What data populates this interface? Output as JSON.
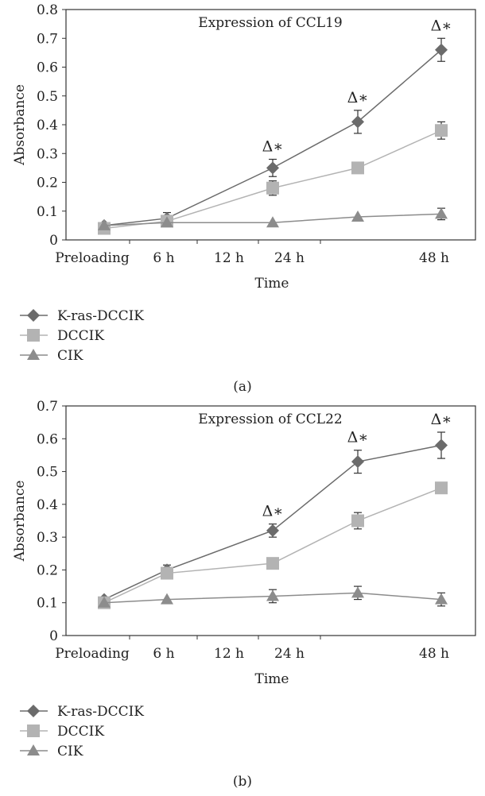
{
  "chart_data": [
    {
      "type": "line",
      "title": "Expression of CCL19",
      "xlabel": "Time",
      "ylabel": "Absorbance",
      "categories": [
        "Preloading",
        "6 h",
        "12 h",
        "24 h",
        "48 h"
      ],
      "ylim": [
        0,
        0.8
      ],
      "yticks": [
        "0",
        "0.1",
        "0.2",
        "0.3",
        "0.4",
        "0.5",
        "0.6",
        "0.7",
        "0.8"
      ],
      "legend_position": "bottom-left",
      "panel_label": "(a)",
      "series": [
        {
          "name": "K-ras-DCCIK",
          "marker": "diamond",
          "color": "#6b6b6b",
          "values": [
            0.05,
            0.075,
            0.25,
            0.41,
            0.66
          ],
          "errors": [
            0.005,
            0.02,
            0.03,
            0.04,
            0.04
          ]
        },
        {
          "name": "DCCIK",
          "marker": "square",
          "color": "#b3b3b3",
          "values": [
            0.04,
            0.065,
            0.18,
            0.25,
            0.38
          ],
          "errors": [
            0.005,
            0.015,
            0.025,
            0.0,
            0.03
          ]
        },
        {
          "name": "CIK",
          "marker": "triangle",
          "color": "#8c8c8c",
          "values": [
            0.05,
            0.06,
            0.06,
            0.08,
            0.09
          ],
          "errors": [
            0.0,
            0.0,
            0.0,
            0.0,
            0.02
          ]
        }
      ],
      "annotations": [
        {
          "x": "12 h",
          "text": "Δ∗"
        },
        {
          "x": "24 h",
          "text": "Δ∗"
        },
        {
          "x": "48 h",
          "text": "Δ∗"
        }
      ]
    },
    {
      "type": "line",
      "title": "Expression of CCL22",
      "xlabel": "Time",
      "ylabel": "Absorbance",
      "categories": [
        "Preloading",
        "6 h",
        "12 h",
        "24 h",
        "48 h"
      ],
      "ylim": [
        0,
        0.7
      ],
      "yticks": [
        "0",
        "0.1",
        "0.2",
        "0.3",
        "0.4",
        "0.5",
        "0.6",
        "0.7"
      ],
      "legend_position": "bottom-left",
      "panel_label": "(b)",
      "series": [
        {
          "name": "K-ras-DCCIK",
          "marker": "diamond",
          "color": "#6b6b6b",
          "values": [
            0.11,
            0.2,
            0.32,
            0.53,
            0.58
          ],
          "errors": [
            0.0,
            0.015,
            0.02,
            0.035,
            0.04
          ]
        },
        {
          "name": "DCCIK",
          "marker": "square",
          "color": "#b3b3b3",
          "values": [
            0.1,
            0.19,
            0.22,
            0.35,
            0.45
          ],
          "errors": [
            0.0,
            0.015,
            0.015,
            0.025,
            0.0
          ]
        },
        {
          "name": "CIK",
          "marker": "triangle",
          "color": "#8c8c8c",
          "values": [
            0.1,
            0.11,
            0.12,
            0.13,
            0.11
          ],
          "errors": [
            0.0,
            0.0,
            0.02,
            0.02,
            0.02
          ]
        }
      ],
      "annotations": [
        {
          "x": "12 h",
          "text": "Δ∗"
        },
        {
          "x": "24 h",
          "text": "Δ∗"
        },
        {
          "x": "48 h",
          "text": "Δ∗"
        }
      ]
    }
  ]
}
